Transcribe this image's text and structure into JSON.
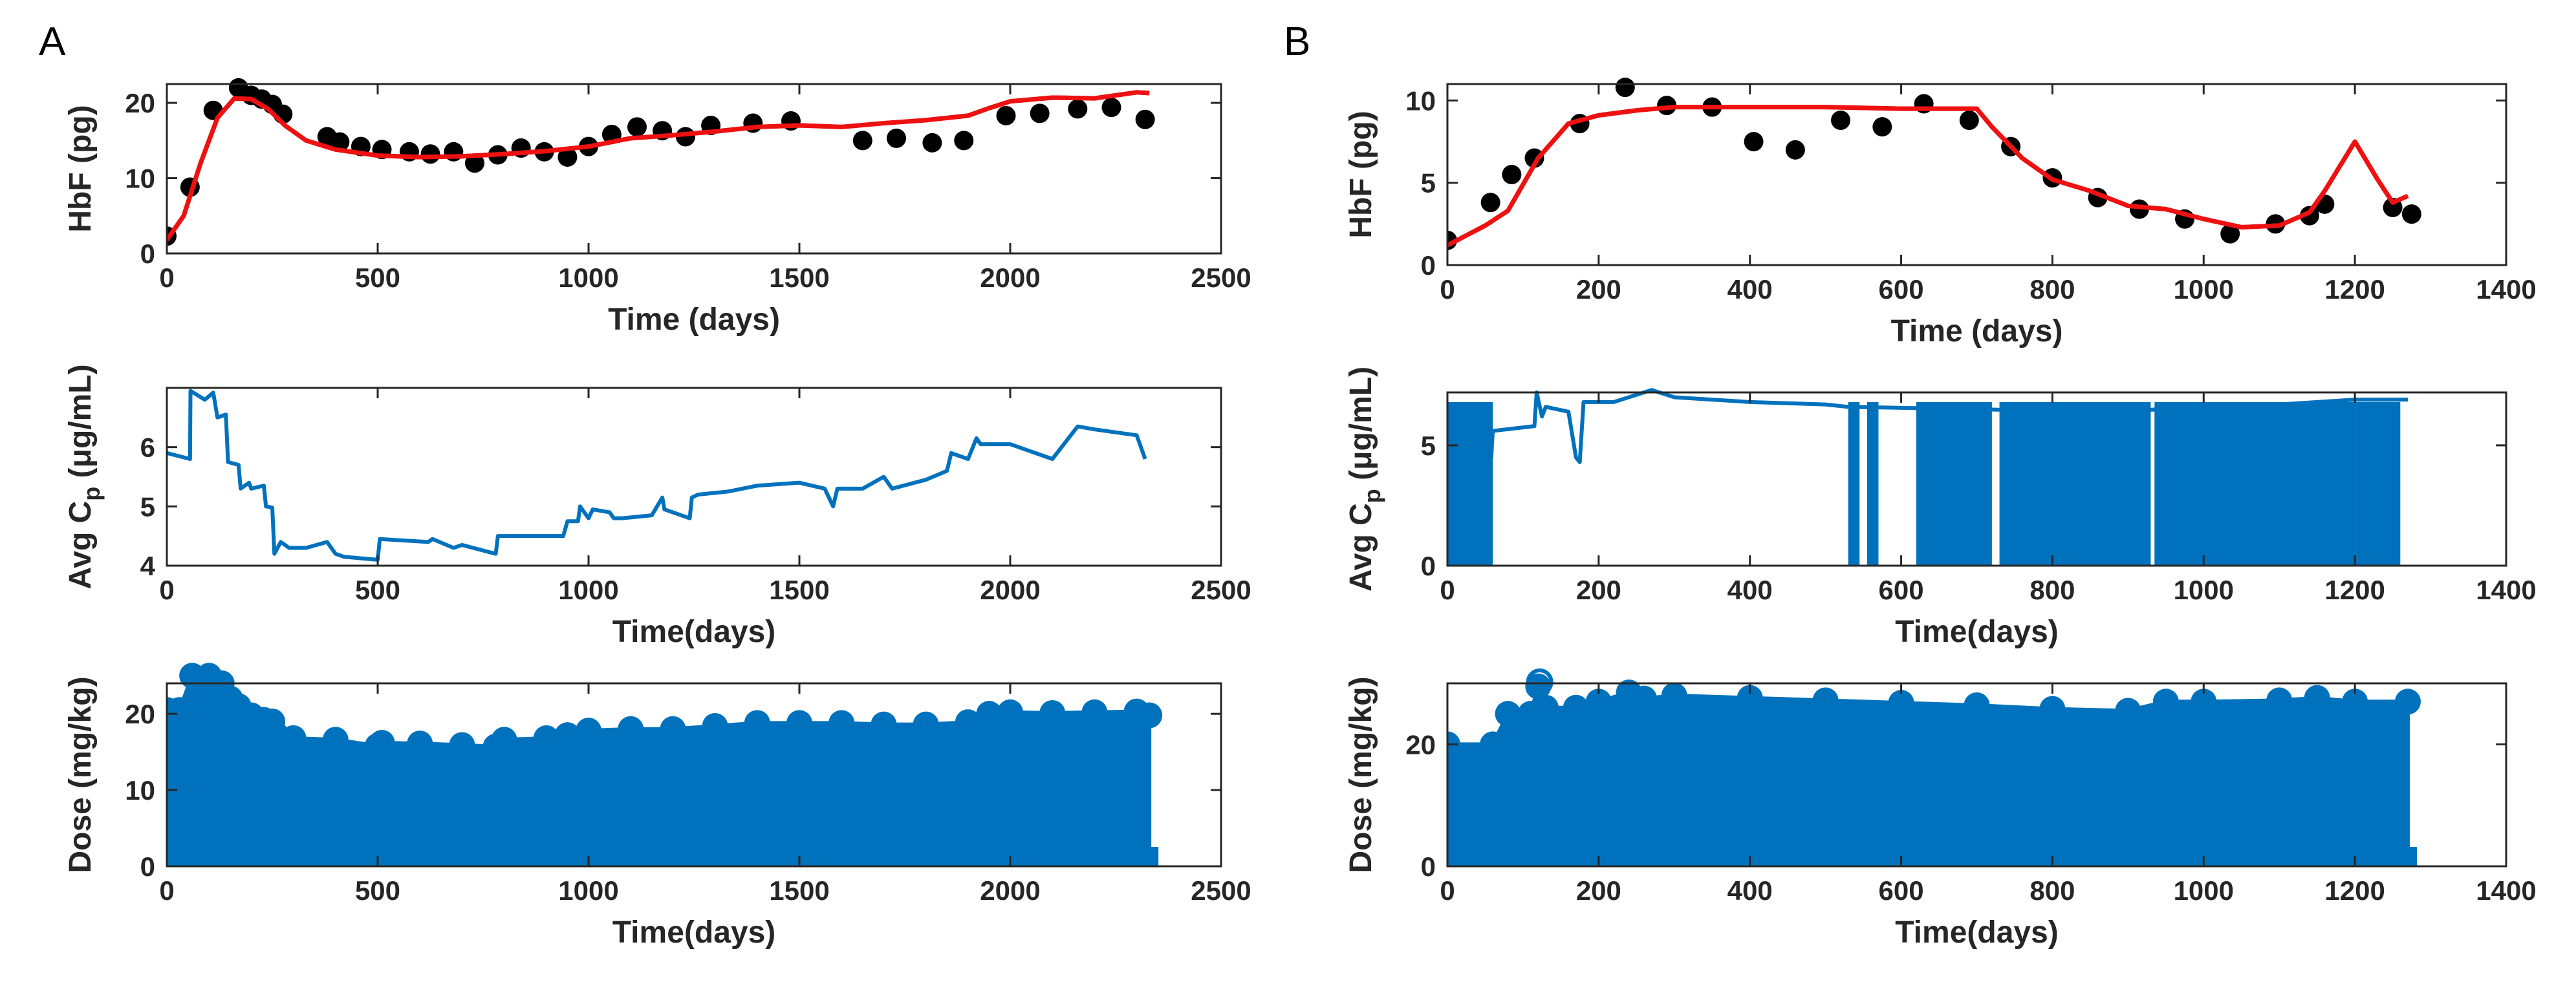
{
  "colors": {
    "model": "#ee1111",
    "observed": "#000000",
    "blue": "#0072bd",
    "axis": "#262626"
  },
  "panel_labels": [
    "A",
    "B"
  ],
  "chart_data": [
    {
      "id": "a1",
      "type": "scatter",
      "panel": "A",
      "xlabel": "Time (days)",
      "ylabel": "HbF (pg)",
      "xlim": [
        0,
        2500
      ],
      "ylim": [
        0,
        22.5
      ],
      "xticks": [
        0,
        500,
        1000,
        1500,
        2000,
        2500
      ],
      "yticks": [
        0,
        10,
        20
      ],
      "series": [
        {
          "name": "observed",
          "kind": "points",
          "color": "#000000",
          "x": [
            0,
            55,
            110,
            170,
            200,
            225,
            250,
            275,
            380,
            410,
            460,
            510,
            575,
            625,
            680,
            730,
            785,
            840,
            895,
            950,
            1000,
            1055,
            1115,
            1175,
            1230,
            1290,
            1390,
            1480,
            1650,
            1730,
            1815,
            1890,
            1990,
            2070,
            2160,
            2240,
            2320
          ],
          "y": [
            2.3,
            8.8,
            19,
            22,
            21,
            20.5,
            19.8,
            18.5,
            15.5,
            14.8,
            14.2,
            13.8,
            13.5,
            13.2,
            13.5,
            12,
            13.1,
            14,
            13.5,
            12.8,
            14.2,
            15.8,
            16.8,
            16.3,
            15.5,
            17,
            17.3,
            17.6,
            15,
            15.3,
            14.7,
            15,
            18.3,
            18.6,
            19.2,
            19.4,
            17.8
          ]
        },
        {
          "name": "model",
          "kind": "line",
          "color": "#ee1111",
          "x": [
            0,
            40,
            80,
            120,
            160,
            200,
            240,
            280,
            330,
            400,
            500,
            600,
            700,
            800,
            900,
            1000,
            1100,
            1200,
            1300,
            1400,
            1500,
            1600,
            1700,
            1800,
            1900,
            1950,
            2000,
            2100,
            2200,
            2300,
            2330
          ],
          "y": [
            1.8,
            5,
            12,
            18,
            20.6,
            20.5,
            19.2,
            17,
            15,
            13.8,
            13,
            12.8,
            12.9,
            13.2,
            13.6,
            14.2,
            15.3,
            15.7,
            16.2,
            16.8,
            17,
            16.8,
            17.3,
            17.7,
            18.3,
            19.3,
            20.2,
            20.7,
            20.6,
            21.4,
            21.3
          ]
        }
      ]
    },
    {
      "id": "a2",
      "type": "line",
      "panel": "A",
      "xlabel": "Time(days)",
      "ylabel": "Avg C_p (μg/mL)",
      "ylabel_parts": {
        "pre": "Avg C",
        "sub": "p",
        "post": " (μg/mL)"
      },
      "xlim": [
        0,
        2500
      ],
      "ylim": [
        4,
        7
      ],
      "xticks": [
        0,
        500,
        1000,
        1500,
        2000,
        2500
      ],
      "yticks": [
        4,
        5,
        6
      ],
      "series": [
        {
          "name": "avg_cp",
          "color": "#0072bd",
          "x": [
            0,
            55,
            56,
            90,
            110,
            120,
            140,
            145,
            170,
            175,
            195,
            200,
            230,
            235,
            250,
            255,
            270,
            290,
            330,
            380,
            400,
            420,
            500,
            505,
            620,
            630,
            680,
            700,
            780,
            785,
            900,
            940,
            950,
            975,
            980,
            1000,
            1010,
            1050,
            1060,
            1080,
            1150,
            1175,
            1180,
            1240,
            1245,
            1260,
            1330,
            1400,
            1500,
            1560,
            1580,
            1590,
            1650,
            1700,
            1720,
            1800,
            1850,
            1860,
            1900,
            1920,
            1930,
            2000,
            2100,
            2160,
            2200,
            2300,
            2320
          ],
          "y": [
            5.9,
            5.8,
            6.95,
            6.8,
            6.92,
            6.5,
            6.55,
            5.75,
            5.7,
            5.3,
            5.4,
            5.3,
            5.35,
            5,
            4.98,
            4.2,
            4.4,
            4.3,
            4.3,
            4.4,
            4.2,
            4.15,
            4.1,
            4.45,
            4.4,
            4.45,
            4.3,
            4.35,
            4.2,
            4.5,
            4.5,
            4.5,
            4.75,
            4.75,
            5,
            4.8,
            4.95,
            4.9,
            4.8,
            4.8,
            4.85,
            5.15,
            4.95,
            4.8,
            5.15,
            5.2,
            5.25,
            5.35,
            5.4,
            5.3,
            5,
            5.3,
            5.3,
            5.5,
            5.3,
            5.45,
            5.6,
            5.9,
            5.8,
            6.15,
            6.05,
            6.05,
            5.8,
            6.35,
            6.3,
            6.2,
            5.8
          ]
        }
      ]
    },
    {
      "id": "a3",
      "type": "stem",
      "panel": "A",
      "xlabel": "Time(days)",
      "ylabel": "Dose (mg/kg)",
      "xlim": [
        0,
        2500
      ],
      "ylim": [
        0,
        24
      ],
      "xticks": [
        0,
        500,
        1000,
        1500,
        2000,
        2500
      ],
      "yticks": [
        0,
        10,
        20
      ],
      "series": [
        {
          "name": "dose",
          "color": "#0072bd",
          "x": [
            0,
            30,
            60,
            100,
            130,
            150,
            170,
            200,
            230,
            250,
            260,
            300,
            400,
            500,
            510,
            600,
            700,
            780,
            800,
            900,
            950,
            1000,
            1100,
            1200,
            1300,
            1400,
            1500,
            1600,
            1700,
            1800,
            1900,
            1950,
            2000,
            2100,
            2200,
            2300,
            2330
          ],
          "y": [
            20.5,
            20.5,
            25,
            25,
            24,
            22,
            21,
            19.8,
            19.2,
            19,
            17.2,
            16.8,
            16.6,
            15.8,
            16.2,
            16.1,
            15.9,
            15.7,
            16.6,
            16.8,
            17.2,
            17.8,
            18,
            18,
            18.4,
            18.8,
            18.8,
            18.8,
            18.6,
            18.6,
            18.9,
            20,
            20.2,
            20.1,
            20.2,
            20.3,
            19.8
          ]
        }
      ]
    },
    {
      "id": "b1",
      "type": "scatter",
      "panel": "B",
      "xlabel": "Time (days)",
      "ylabel": "HbF (pg)",
      "xlim": [
        0,
        1400
      ],
      "ylim": [
        0,
        11
      ],
      "xticks": [
        0,
        200,
        400,
        600,
        800,
        1000,
        1200,
        1400
      ],
      "yticks": [
        0,
        5,
        10
      ],
      "series": [
        {
          "name": "observed",
          "kind": "points",
          "color": "#000000",
          "x": [
            0,
            57,
            85,
            115,
            175,
            235,
            290,
            350,
            405,
            460,
            520,
            575,
            630,
            690,
            745,
            800,
            860,
            915,
            975,
            1035,
            1095,
            1140,
            1160,
            1250,
            1275
          ],
          "y": [
            1.5,
            3.8,
            5.5,
            6.5,
            8.6,
            10.8,
            9.7,
            9.6,
            7.5,
            7,
            8.8,
            8.4,
            9.8,
            8.8,
            7.2,
            5.3,
            4.1,
            3.4,
            2.8,
            1.9,
            2.5,
            3,
            3.7,
            3.5,
            3.1
          ]
        },
        {
          "name": "model",
          "kind": "line",
          "color": "#ee1111",
          "x": [
            0,
            50,
            80,
            120,
            160,
            200,
            250,
            300,
            400,
            500,
            600,
            700,
            720,
            760,
            800,
            850,
            900,
            950,
            1000,
            1050,
            1100,
            1140,
            1160,
            1200,
            1230,
            1250,
            1270
          ],
          "y": [
            1.2,
            2.4,
            3.3,
            6.5,
            8.6,
            9.1,
            9.4,
            9.6,
            9.6,
            9.6,
            9.5,
            9.5,
            8.4,
            6.5,
            5.2,
            4.5,
            3.6,
            3.4,
            2.8,
            2.3,
            2.4,
            3.2,
            4.5,
            7.5,
            5.2,
            3.8,
            4.2
          ]
        }
      ]
    },
    {
      "id": "b2",
      "type": "line",
      "panel": "B",
      "xlabel": "Time(days)",
      "ylabel": "Avg C_p (μg/mL)",
      "ylabel_parts": {
        "pre": "Avg C",
        "sub": "p",
        "post": " (μg/mL)"
      },
      "xlim": [
        0,
        1400
      ],
      "ylim": [
        0,
        7.2
      ],
      "xticks": [
        0,
        200,
        400,
        600,
        800,
        1000,
        1200,
        1400
      ],
      "yticks": [
        0,
        5
      ],
      "series": [
        {
          "name": "avg_cp",
          "color": "#0072bd",
          "x": [
            0,
            58,
            60,
            115,
            118,
            125,
            130,
            160,
            170,
            175,
            180,
            220,
            240,
            270,
            300,
            400,
            500,
            530,
            700,
            850,
            950,
            1000,
            1050,
            1100,
            1150,
            1200,
            1270
          ],
          "y": [
            4.5,
            4.5,
            5.6,
            5.8,
            7.2,
            6.2,
            6.6,
            6.4,
            4.5,
            4.3,
            6.8,
            6.8,
            7,
            7.3,
            7,
            6.8,
            6.7,
            6.6,
            6.5,
            6.4,
            6.5,
            6.6,
            6.6,
            6.7,
            6.8,
            6.9,
            6.9
          ]
        }
      ],
      "zero_bands": [
        [
          0,
          60
        ],
        [
          530,
          545
        ],
        [
          555,
          570
        ],
        [
          620,
          720
        ],
        [
          730,
          930
        ],
        [
          935,
          1200
        ],
        [
          1200,
          1260
        ]
      ]
    },
    {
      "id": "b3",
      "type": "stem",
      "panel": "B",
      "xlabel": "Time(days)",
      "ylabel": "Dose (mg/kg)",
      "xlim": [
        0,
        1400
      ],
      "ylim": [
        0,
        30
      ],
      "xticks": [
        0,
        200,
        400,
        600,
        800,
        1000,
        1200,
        1400
      ],
      "yticks": [
        0,
        20
      ],
      "series": [
        {
          "name": "dose",
          "color": "#0072bd",
          "x": [
            0,
            60,
            80,
            110,
            120,
            130,
            170,
            200,
            240,
            260,
            300,
            400,
            500,
            600,
            700,
            800,
            900,
            950,
            1000,
            1100,
            1150,
            1200,
            1270
          ],
          "y": [
            20,
            20,
            25,
            25,
            29.5,
            26,
            26,
            27,
            28.5,
            27.5,
            28,
            27.6,
            27.2,
            26.8,
            26.4,
            25.8,
            25.5,
            27,
            27,
            27.2,
            27.6,
            27,
            27
          ]
        }
      ],
      "open_markers": [
        {
          "x": 122,
          "y": 30
        },
        {
          "x": 535,
          "y": 0
        },
        {
          "x": 570,
          "y": 0
        }
      ]
    }
  ]
}
